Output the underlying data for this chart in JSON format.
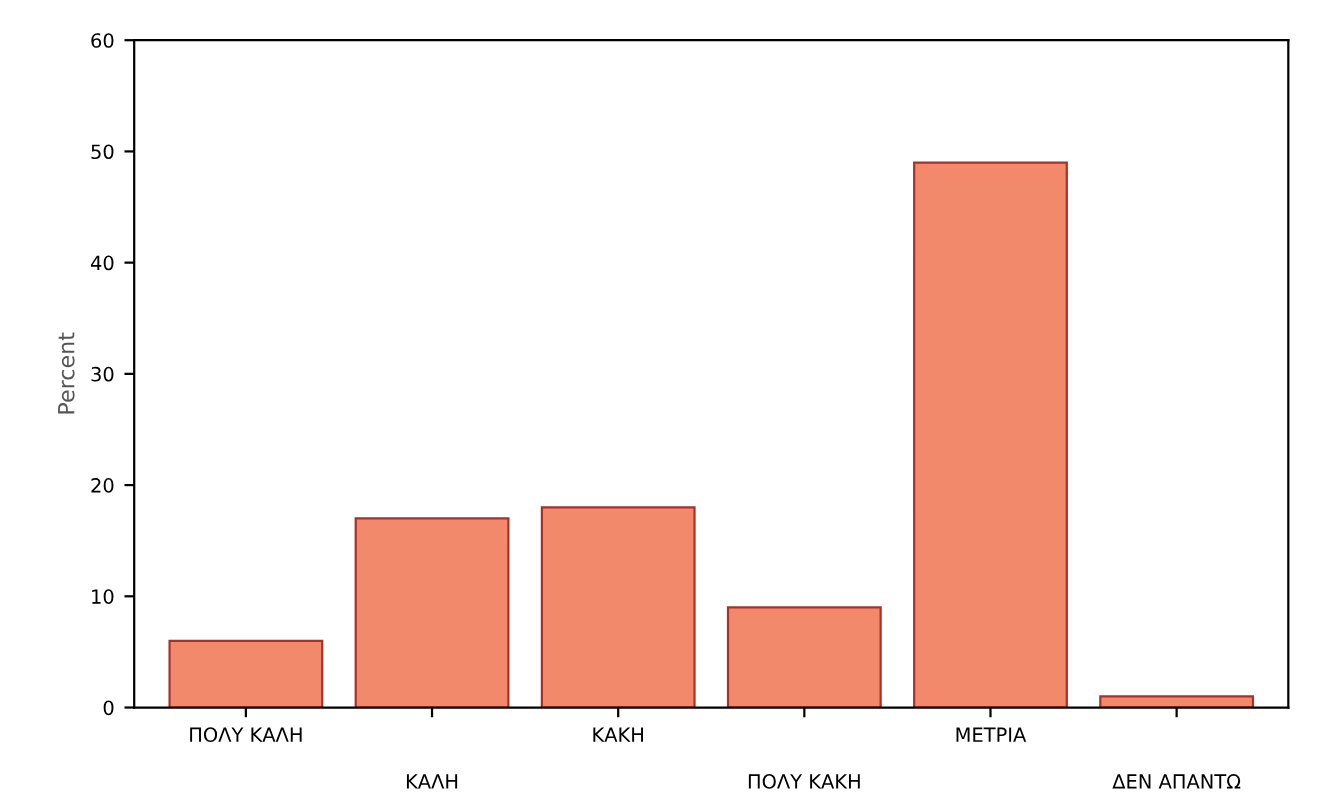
{
  "chart_data": {
    "type": "bar",
    "ylabel": "Percent",
    "categories": [
      "ΠΟΛΥ ΚΑΛΗ",
      "ΚΑΛΗ",
      "ΚΑΚΗ",
      "ΠΟΛΥ ΚΑΚΗ",
      "ΜΕΤΡΙΑ",
      "ΔΕΝ ΑΠΑΝΤΩ"
    ],
    "values": [
      6,
      17,
      18,
      9,
      49,
      1
    ],
    "color": "#f3896b",
    "ylim": [
      0,
      60
    ],
    "yticks": [
      0,
      10,
      20,
      30,
      40,
      50,
      60
    ],
    "grid": false
  }
}
